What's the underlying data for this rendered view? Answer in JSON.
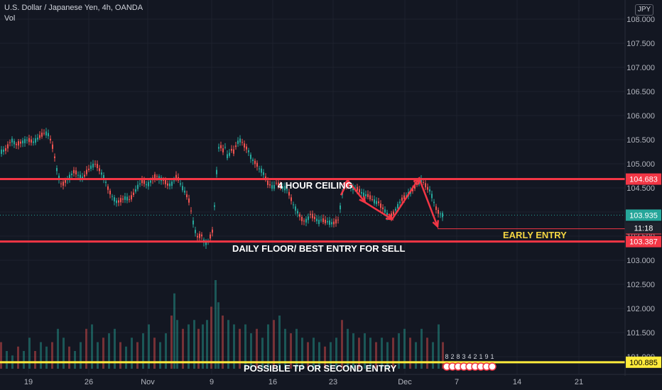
{
  "legend": {
    "symbol_line": "U.S. Dollar / Japanese Yen, 4h, OANDA",
    "volume_label": "Vol"
  },
  "currency_badge": "JPY",
  "colors": {
    "background": "#131722",
    "up": "#26a69a",
    "down": "#ef5350",
    "level_line": "#f23645",
    "tp_line": "#ffeb3b",
    "annotation_text": "#ffffff",
    "early_entry_text": "#f5d742",
    "grid": "#1e222d"
  },
  "chart_data": {
    "type": "candlestick",
    "title": "U.S. Dollar / Japanese Yen, 4h, OANDA",
    "ylim": [
      100.8,
      108.2
    ],
    "y_ticks": [
      "101.000",
      "101.500",
      "102.000",
      "102.500",
      "103.000",
      "103.500",
      "104.000",
      "104.500",
      "105.000",
      "105.500",
      "106.000",
      "106.500",
      "107.000",
      "107.500",
      "108.000"
    ],
    "x_ticks": [
      "19",
      "26",
      "Nov",
      "9",
      "16",
      "23",
      "Dec",
      "7",
      "14",
      "21"
    ],
    "price_path": [
      [
        0,
        105.25
      ],
      [
        8,
        105.3
      ],
      [
        15,
        105.5
      ],
      [
        22,
        105.4
      ],
      [
        30,
        105.45
      ],
      [
        38,
        105.5
      ],
      [
        46,
        105.45
      ],
      [
        54,
        105.55
      ],
      [
        62,
        105.65
      ],
      [
        68,
        105.6
      ],
      [
        74,
        105.3
      ],
      [
        80,
        104.8
      ],
      [
        86,
        104.55
      ],
      [
        92,
        104.65
      ],
      [
        98,
        104.75
      ],
      [
        104,
        104.85
      ],
      [
        110,
        104.75
      ],
      [
        116,
        104.7
      ],
      [
        122,
        104.85
      ],
      [
        128,
        104.95
      ],
      [
        134,
        105.0
      ],
      [
        140,
        104.85
      ],
      [
        146,
        104.7
      ],
      [
        152,
        104.45
      ],
      [
        158,
        104.3
      ],
      [
        164,
        104.2
      ],
      [
        170,
        104.25
      ],
      [
        176,
        104.3
      ],
      [
        182,
        104.25
      ],
      [
        188,
        104.4
      ],
      [
        194,
        104.55
      ],
      [
        200,
        104.65
      ],
      [
        206,
        104.55
      ],
      [
        212,
        104.65
      ],
      [
        218,
        104.75
      ],
      [
        224,
        104.7
      ],
      [
        230,
        104.65
      ],
      [
        236,
        104.55
      ],
      [
        242,
        104.6
      ],
      [
        248,
        104.75
      ],
      [
        254,
        104.55
      ],
      [
        260,
        104.4
      ],
      [
        266,
        104.2
      ],
      [
        270,
        103.85
      ],
      [
        274,
        103.6
      ],
      [
        278,
        103.45
      ],
      [
        282,
        103.55
      ],
      [
        286,
        103.4
      ],
      [
        290,
        103.35
      ],
      [
        294,
        103.45
      ],
      [
        298,
        103.6
      ],
      [
        302,
        104.3
      ],
      [
        305,
        105.1
      ],
      [
        308,
        105.45
      ],
      [
        312,
        105.25
      ],
      [
        316,
        105.35
      ],
      [
        320,
        105.1
      ],
      [
        324,
        105.3
      ],
      [
        328,
        105.25
      ],
      [
        332,
        105.4
      ],
      [
        336,
        105.5
      ],
      [
        340,
        105.45
      ],
      [
        344,
        105.35
      ],
      [
        348,
        105.3
      ],
      [
        352,
        105.15
      ],
      [
        356,
        105.05
      ],
      [
        360,
        105.0
      ],
      [
        364,
        104.9
      ],
      [
        368,
        104.85
      ],
      [
        372,
        104.75
      ],
      [
        376,
        104.6
      ],
      [
        380,
        104.55
      ],
      [
        384,
        104.5
      ],
      [
        388,
        104.6
      ],
      [
        392,
        104.55
      ],
      [
        396,
        104.5
      ],
      [
        400,
        104.5
      ],
      [
        404,
        104.45
      ],
      [
        408,
        104.3
      ],
      [
        412,
        104.15
      ],
      [
        416,
        104.05
      ],
      [
        420,
        103.95
      ],
      [
        424,
        103.85
      ],
      [
        428,
        103.8
      ],
      [
        432,
        103.85
      ],
      [
        436,
        103.95
      ],
      [
        440,
        103.9
      ],
      [
        444,
        103.85
      ],
      [
        448,
        103.8
      ],
      [
        452,
        103.85
      ],
      [
        456,
        103.8
      ],
      [
        460,
        103.8
      ],
      [
        464,
        103.78
      ],
      [
        468,
        103.76
      ],
      [
        472,
        103.8
      ],
      [
        476,
        103.85
      ],
      [
        480,
        104.35
      ],
      [
        484,
        104.55
      ],
      [
        488,
        104.6
      ],
      [
        492,
        104.55
      ],
      [
        496,
        104.5
      ],
      [
        500,
        104.5
      ],
      [
        504,
        104.45
      ],
      [
        508,
        104.4
      ],
      [
        512,
        104.35
      ],
      [
        516,
        104.35
      ],
      [
        520,
        104.3
      ],
      [
        524,
        104.25
      ],
      [
        528,
        104.2
      ],
      [
        532,
        104.2
      ],
      [
        536,
        104.1
      ],
      [
        540,
        104.05
      ],
      [
        544,
        103.95
      ],
      [
        548,
        103.9
      ],
      [
        552,
        103.95
      ],
      [
        556,
        104.05
      ],
      [
        560,
        104.15
      ],
      [
        564,
        104.25
      ],
      [
        568,
        104.3
      ],
      [
        572,
        104.35
      ],
      [
        576,
        104.4
      ],
      [
        580,
        104.45
      ],
      [
        584,
        104.55
      ],
      [
        588,
        104.6
      ],
      [
        592,
        104.65
      ],
      [
        596,
        104.6
      ],
      [
        600,
        104.5
      ],
      [
        604,
        104.45
      ],
      [
        608,
        104.3
      ],
      [
        612,
        104.1
      ],
      [
        616,
        104.0
      ],
      [
        620,
        103.95
      ],
      [
        624,
        103.93
      ]
    ],
    "volume": [
      {
        "x": 0,
        "v": 0.3
      },
      {
        "x": 8,
        "v": 0.2
      },
      {
        "x": 16,
        "v": 0.15
      },
      {
        "x": 24,
        "v": 0.25
      },
      {
        "x": 32,
        "v": 0.2
      },
      {
        "x": 40,
        "v": 0.35
      },
      {
        "x": 48,
        "v": 0.2
      },
      {
        "x": 56,
        "v": 0.3
      },
      {
        "x": 64,
        "v": 0.25
      },
      {
        "x": 72,
        "v": 0.3
      },
      {
        "x": 80,
        "v": 0.45
      },
      {
        "x": 88,
        "v": 0.35
      },
      {
        "x": 96,
        "v": 0.25
      },
      {
        "x": 104,
        "v": 0.2
      },
      {
        "x": 112,
        "v": 0.3
      },
      {
        "x": 120,
        "v": 0.45
      },
      {
        "x": 128,
        "v": 0.5
      },
      {
        "x": 136,
        "v": 0.3
      },
      {
        "x": 144,
        "v": 0.35
      },
      {
        "x": 152,
        "v": 0.4
      },
      {
        "x": 160,
        "v": 0.45
      },
      {
        "x": 168,
        "v": 0.3
      },
      {
        "x": 176,
        "v": 0.25
      },
      {
        "x": 184,
        "v": 0.35
      },
      {
        "x": 192,
        "v": 0.3
      },
      {
        "x": 200,
        "v": 0.4
      },
      {
        "x": 208,
        "v": 0.5
      },
      {
        "x": 216,
        "v": 0.35
      },
      {
        "x": 224,
        "v": 0.3
      },
      {
        "x": 232,
        "v": 0.4
      },
      {
        "x": 240,
        "v": 0.6
      },
      {
        "x": 244,
        "v": 0.85
      },
      {
        "x": 248,
        "v": 0.55
      },
      {
        "x": 256,
        "v": 0.45
      },
      {
        "x": 264,
        "v": 0.5
      },
      {
        "x": 272,
        "v": 0.55
      },
      {
        "x": 278,
        "v": 0.45
      },
      {
        "x": 284,
        "v": 0.5
      },
      {
        "x": 290,
        "v": 0.55
      },
      {
        "x": 296,
        "v": 0.7
      },
      {
        "x": 302,
        "v": 1.0
      },
      {
        "x": 306,
        "v": 0.75
      },
      {
        "x": 312,
        "v": 0.6
      },
      {
        "x": 320,
        "v": 0.55
      },
      {
        "x": 328,
        "v": 0.5
      },
      {
        "x": 336,
        "v": 0.45
      },
      {
        "x": 344,
        "v": 0.5
      },
      {
        "x": 352,
        "v": 0.4
      },
      {
        "x": 360,
        "v": 0.45
      },
      {
        "x": 368,
        "v": 0.35
      },
      {
        "x": 376,
        "v": 0.5
      },
      {
        "x": 384,
        "v": 0.55
      },
      {
        "x": 392,
        "v": 0.6
      },
      {
        "x": 400,
        "v": 0.45
      },
      {
        "x": 408,
        "v": 0.4
      },
      {
        "x": 416,
        "v": 0.45
      },
      {
        "x": 424,
        "v": 0.35
      },
      {
        "x": 432,
        "v": 0.3
      },
      {
        "x": 440,
        "v": 0.35
      },
      {
        "x": 448,
        "v": 0.3
      },
      {
        "x": 456,
        "v": 0.25
      },
      {
        "x": 464,
        "v": 0.3
      },
      {
        "x": 472,
        "v": 0.35
      },
      {
        "x": 480,
        "v": 0.55
      },
      {
        "x": 488,
        "v": 0.45
      },
      {
        "x": 496,
        "v": 0.4
      },
      {
        "x": 504,
        "v": 0.35
      },
      {
        "x": 512,
        "v": 0.4
      },
      {
        "x": 520,
        "v": 0.35
      },
      {
        "x": 528,
        "v": 0.3
      },
      {
        "x": 536,
        "v": 0.35
      },
      {
        "x": 544,
        "v": 0.3
      },
      {
        "x": 552,
        "v": 0.35
      },
      {
        "x": 560,
        "v": 0.4
      },
      {
        "x": 568,
        "v": 0.45
      },
      {
        "x": 576,
        "v": 0.35
      },
      {
        "x": 584,
        "v": 0.3
      },
      {
        "x": 592,
        "v": 0.45
      },
      {
        "x": 600,
        "v": 0.35
      },
      {
        "x": 608,
        "v": 0.3
      },
      {
        "x": 616,
        "v": 0.5
      },
      {
        "x": 622,
        "v": 0.3
      }
    ],
    "levels": [
      {
        "name": "4 HOUR CEILING",
        "price": 104.683,
        "price_label": "104.683"
      },
      {
        "name": "DAILY FLOOR/ BEST ENTRY FOR SELL",
        "price": 103.387,
        "price_label": "103.387"
      },
      {
        "name": "EARLY ENTRY",
        "price": 103.652,
        "price_label": "103.652"
      },
      {
        "name": "POSSIBLE TP OR SECOND ENTRY",
        "price": 100.885,
        "price_label": "100.885"
      }
    ],
    "last_price": {
      "label": "103.935",
      "value": 103.935,
      "countdown": "11:18"
    },
    "annotations": {
      "ceiling_text": "4 HOUR CEILING",
      "floor_text": "DAILY FLOOR/ BEST ENTRY FOR SELL",
      "early_entry_text": "EARLY ENTRY",
      "tp_text": "POSSIBLE TP OR SECOND ENTRY"
    },
    "arrow_path": [
      [
        480,
        104.35
      ],
      [
        490,
        104.65
      ],
      [
        514,
        104.2
      ],
      [
        552,
        103.85
      ],
      [
        590,
        104.7
      ],
      [
        616,
        103.7
      ]
    ],
    "event_markers": [
      "8",
      "2",
      "8",
      "3",
      "4",
      "2",
      "1",
      "9",
      "1"
    ]
  }
}
